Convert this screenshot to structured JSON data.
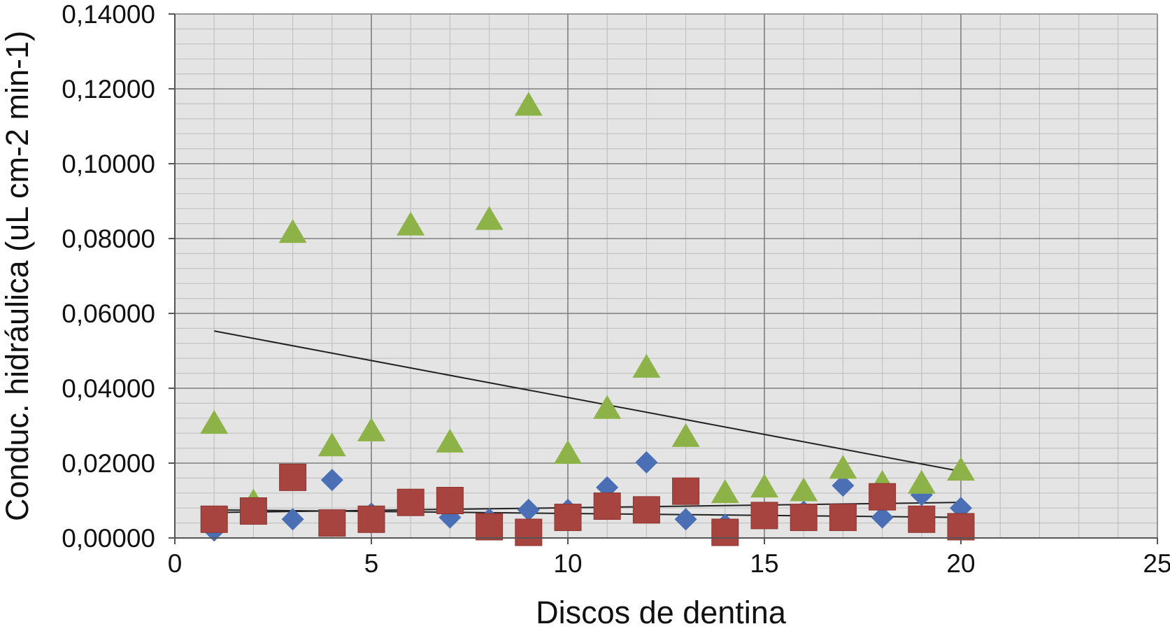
{
  "chart_data": {
    "type": "scatter",
    "title": "",
    "xlabel": "Discos de dentina",
    "ylabel": "Conduc. hidráulica (uL cm-2 min-1)",
    "xlim": [
      0,
      25
    ],
    "ylim": [
      0,
      0.14
    ],
    "x_ticks": [
      0,
      5,
      10,
      15,
      20,
      25
    ],
    "x_tick_labels": [
      "0",
      "5",
      "10",
      "15",
      "20",
      "25"
    ],
    "y_ticks": [
      0,
      0.02,
      0.04,
      0.06,
      0.08,
      0.1,
      0.12,
      0.14
    ],
    "y_tick_labels": [
      "0,00000",
      "0,02000",
      "0,04000",
      "0,06000",
      "0,08000",
      "0,10000",
      "0,12000",
      "0,14000"
    ],
    "x_minor_step": 1,
    "y_minor_step": 0.004,
    "grid": true,
    "legend": "none",
    "plot_background": "#e4e4e4",
    "series": [
      {
        "marker": "diamond",
        "color": "#4a6fb5",
        "x": [
          1,
          2,
          3,
          4,
          5,
          6,
          7,
          8,
          9,
          10,
          11,
          12,
          13,
          14,
          15,
          16,
          17,
          18,
          19,
          20
        ],
        "values": [
          0.002,
          0.009,
          0.005,
          0.0155,
          0.0065,
          0.01,
          0.0055,
          0.005,
          0.0075,
          0.0075,
          0.0135,
          0.0202,
          0.005,
          0.0035,
          0.006,
          0.007,
          0.014,
          0.0055,
          0.0115,
          0.008
        ],
        "trendline": {
          "start": [
            1,
            0.0068
          ],
          "end": [
            20,
            0.0095
          ],
          "color": "#222222"
        }
      },
      {
        "marker": "square",
        "color": "#a8443f",
        "x": [
          1,
          2,
          3,
          4,
          5,
          6,
          7,
          8,
          9,
          10,
          11,
          12,
          13,
          14,
          15,
          16,
          17,
          18,
          19,
          20
        ],
        "values": [
          0.005,
          0.0072,
          0.0162,
          0.004,
          0.005,
          0.0095,
          0.01,
          0.003,
          0.0015,
          0.0055,
          0.0085,
          0.0075,
          0.0125,
          0.0015,
          0.006,
          0.0055,
          0.0055,
          0.011,
          0.005,
          0.003
        ],
        "trendline": {
          "start": [
            1,
            0.0075
          ],
          "end": [
            20,
            0.0055
          ],
          "color": "#222222"
        }
      },
      {
        "marker": "triangle",
        "color": "#8db348",
        "x": [
          1,
          2,
          3,
          4,
          5,
          6,
          7,
          8,
          9,
          10,
          11,
          12,
          13,
          14,
          15,
          16,
          17,
          18,
          19,
          20
        ],
        "values": [
          0.031,
          0.01,
          0.082,
          0.025,
          0.029,
          0.084,
          0.026,
          0.0855,
          0.116,
          0.023,
          0.035,
          0.046,
          0.0275,
          0.0125,
          0.014,
          0.013,
          0.019,
          0.015,
          0.015,
          0.0185
        ],
        "trendline": {
          "start": [
            1,
            0.0553
          ],
          "end": [
            20,
            0.0178
          ],
          "color": "#222222"
        }
      }
    ]
  }
}
